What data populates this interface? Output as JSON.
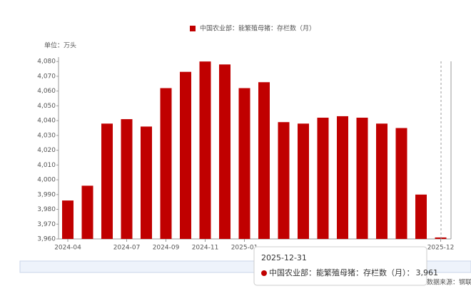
{
  "chart_data": {
    "type": "bar",
    "legend": "中国农业部：能繁殖母猪：存栏数（月）",
    "unit": "单位：万头",
    "source": "数据来源：钢联",
    "categories": [
      "2024-04",
      null,
      null,
      "2024-07",
      null,
      "2024-09",
      null,
      "2024-11",
      null,
      "2025-01",
      null,
      null,
      null,
      null,
      null,
      null,
      null,
      null,
      null,
      "2025-12"
    ],
    "series": [
      {
        "name": "中国农业部：能繁殖母猪：存栏数（月）",
        "color": "#c00000",
        "values": [
          3986,
          3996,
          4038,
          4041,
          4036,
          4062,
          4073,
          4080,
          4078,
          4062,
          4066,
          4039,
          4038,
          4042,
          4043,
          4042,
          4038,
          4035,
          3990,
          3961
        ]
      }
    ],
    "ylim": [
      3960,
      4083
    ],
    "yticks": [
      {
        "value": 3960,
        "label": "3,960"
      },
      {
        "value": 3970,
        "label": "3,970"
      },
      {
        "value": 3980,
        "label": "3,980"
      },
      {
        "value": 3990,
        "label": "3,990"
      },
      {
        "value": 4000,
        "label": "4,000"
      },
      {
        "value": 4010,
        "label": "4,010"
      },
      {
        "value": 4020,
        "label": "4,020"
      },
      {
        "value": 4030,
        "label": "4,030"
      },
      {
        "value": 4040,
        "label": "4,040"
      },
      {
        "value": 4050,
        "label": "4,050"
      },
      {
        "value": 4060,
        "label": "4,060"
      },
      {
        "value": 4070,
        "label": "4,070"
      },
      {
        "value": 4080,
        "label": "4,080"
      }
    ],
    "tooltip": {
      "date": "2025-12-31",
      "label": "中国农业部：能繁殖母猪：存栏数（月）：",
      "value_label": "3,961"
    }
  }
}
